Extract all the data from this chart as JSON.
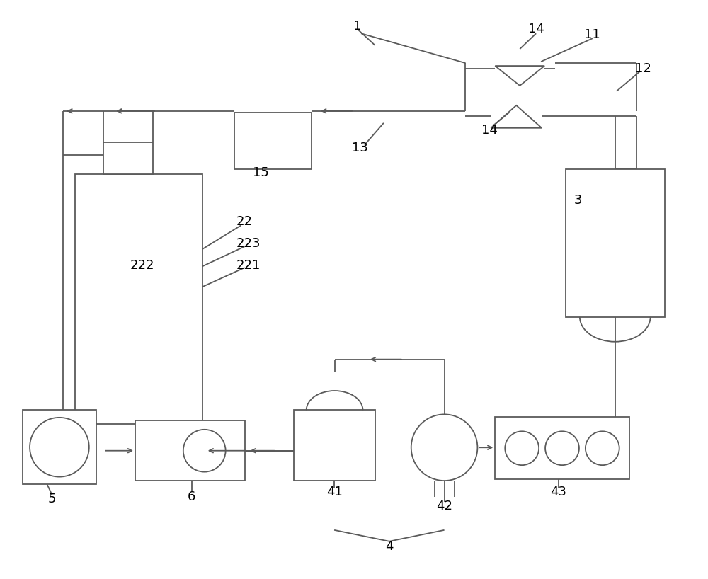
{
  "bg_color": "#ffffff",
  "line_color": "#5a5a5a",
  "line_width": 1.3,
  "fig_width": 10.0,
  "fig_height": 8.18
}
